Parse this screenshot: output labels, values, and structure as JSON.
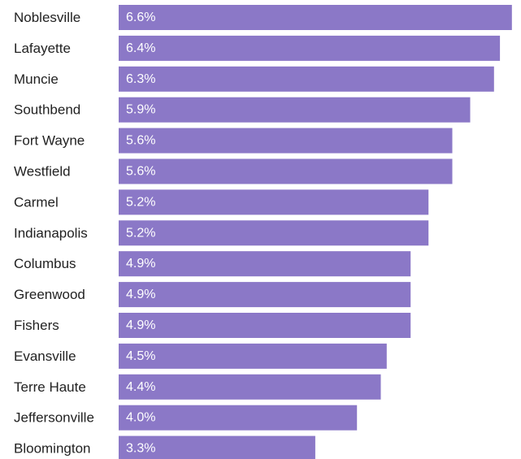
{
  "chart_data": {
    "type": "bar",
    "orientation": "horizontal",
    "categories": [
      "Noblesville",
      "Lafayette",
      "Muncie",
      "Southbend",
      "Fort Wayne",
      "Westfield",
      "Carmel",
      "Indianapolis",
      "Columbus",
      "Greenwood",
      "Fishers",
      "Evansville",
      "Terre Haute",
      "Jeffersonville",
      "Bloomington"
    ],
    "values": [
      6.6,
      6.4,
      6.3,
      5.9,
      5.6,
      5.6,
      5.2,
      5.2,
      4.9,
      4.9,
      4.9,
      4.5,
      4.4,
      4.0,
      3.3
    ],
    "value_labels": [
      "6.6%",
      "6.4%",
      "6.3%",
      "5.9%",
      "5.6%",
      "5.6%",
      "5.2%",
      "5.2%",
      "4.9%",
      "4.9%",
      "4.9%",
      "4.5%",
      "4.4%",
      "4.0%",
      "3.3%"
    ],
    "bar_color": "#8b78c7",
    "label_color": "#222222",
    "value_label_color": "#ffffff",
    "grid": false,
    "legend": "none",
    "title": "",
    "xlabel": "",
    "ylabel": ""
  }
}
